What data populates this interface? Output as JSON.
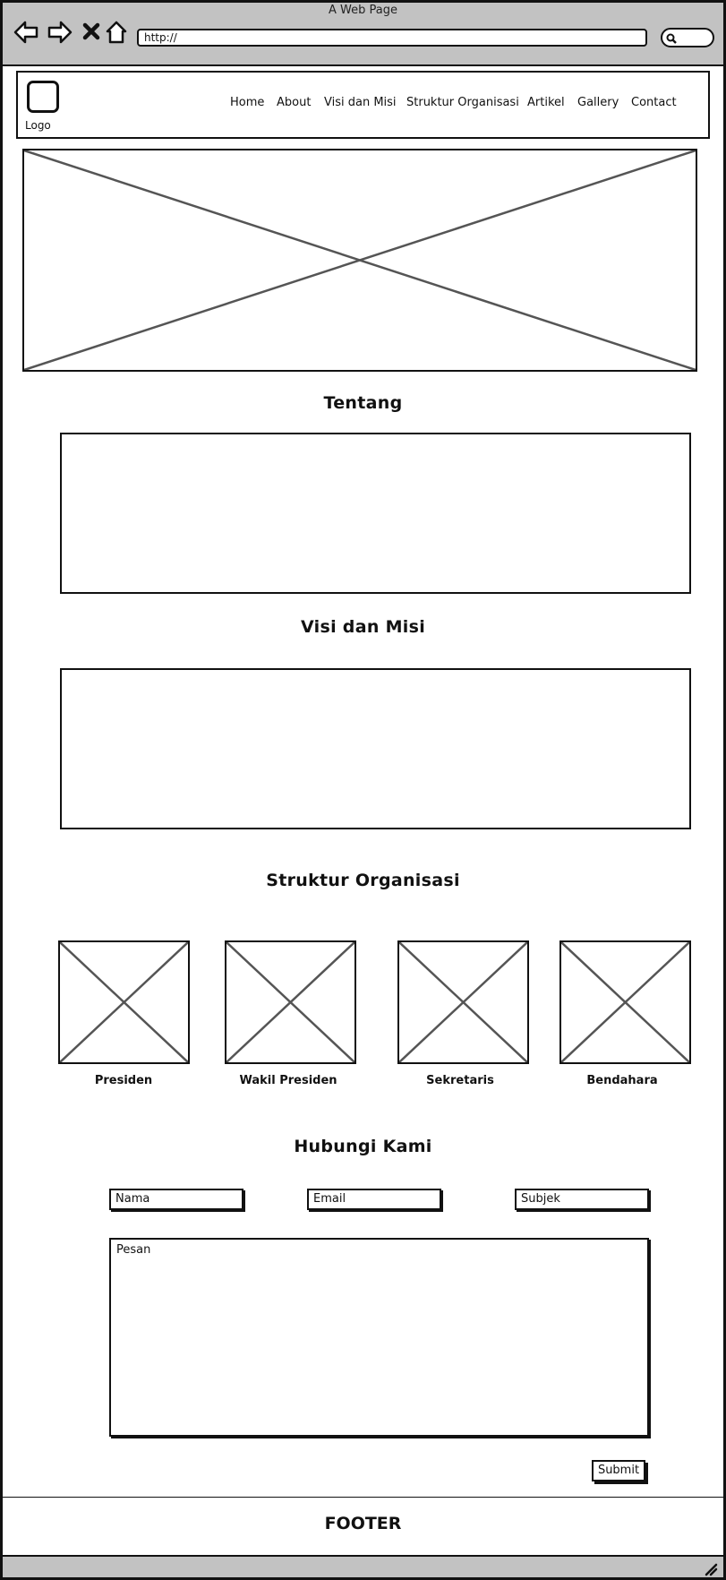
{
  "window": {
    "title": "A Web Page"
  },
  "browser": {
    "url": "http://"
  },
  "header": {
    "logo_label": "Logo",
    "nav": [
      "Home",
      "About",
      "Visi dan Misi",
      "Struktur Organisasi",
      "Artikel",
      "Gallery",
      "Contact"
    ]
  },
  "sections": {
    "about_title": "Tentang",
    "vision_title": "Visi dan Misi",
    "structure_title": "Struktur Organisasi",
    "contact_title": "Hubungi Kami"
  },
  "members": [
    "Presiden",
    "Wakil Presiden",
    "Sekretaris",
    "Bendahara"
  ],
  "form": {
    "name_placeholder": "Nama",
    "email_placeholder": "Email",
    "subject_placeholder": "Subjek",
    "message_placeholder": "Pesan",
    "submit_label": "Submit"
  },
  "footer": {
    "text": "FOOTER"
  }
}
